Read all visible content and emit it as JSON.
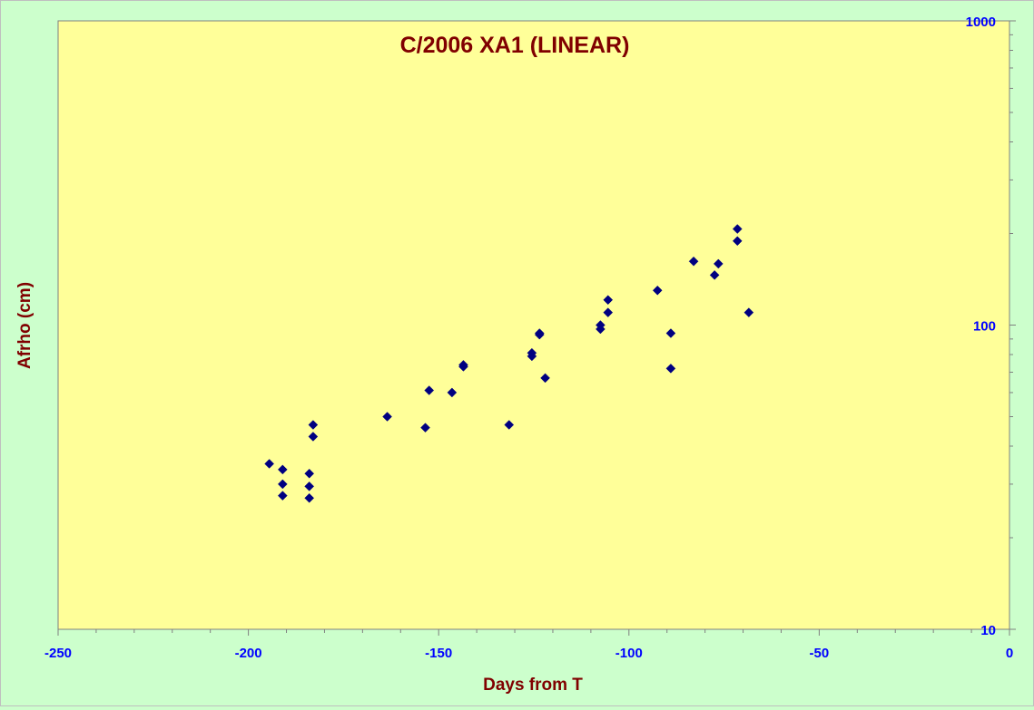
{
  "chart_data": {
    "type": "scatter",
    "title": "C/2006 XA1 (LINEAR)",
    "xlabel": "Days from T",
    "ylabel": "Afrho (cm)",
    "xlim": [
      -250,
      0
    ],
    "ylim": [
      10,
      1000
    ],
    "yscale": "log",
    "y_axis_side": "right",
    "x_ticks": [
      -250,
      -200,
      -150,
      -100,
      -50,
      0
    ],
    "y_ticks": [
      10,
      100,
      1000
    ],
    "grid": false,
    "legend": "none",
    "colors": {
      "plot_background": "#ffff99",
      "chart_background": "#ccffcc",
      "marker": "#000080",
      "title": "#800000",
      "tick_labels": "#0000ff"
    },
    "series": [
      {
        "points": [
          {
            "x": -194.5,
            "y": 35
          },
          {
            "x": -191.0,
            "y": 33.5
          },
          {
            "x": -191.0,
            "y": 30
          },
          {
            "x": -191.0,
            "y": 27.5
          },
          {
            "x": -184.0,
            "y": 32.5
          },
          {
            "x": -184.0,
            "y": 29.5
          },
          {
            "x": -184.0,
            "y": 27
          },
          {
            "x": -183.0,
            "y": 47
          },
          {
            "x": -183.0,
            "y": 43
          },
          {
            "x": -163.5,
            "y": 50
          },
          {
            "x": -153.5,
            "y": 46
          },
          {
            "x": -152.5,
            "y": 61
          },
          {
            "x": -146.5,
            "y": 60
          },
          {
            "x": -143.5,
            "y": 74
          },
          {
            "x": -143.5,
            "y": 73
          },
          {
            "x": -131.5,
            "y": 47
          },
          {
            "x": -125.5,
            "y": 81
          },
          {
            "x": -125.5,
            "y": 79
          },
          {
            "x": -123.5,
            "y": 94
          },
          {
            "x": -123.5,
            "y": 93
          },
          {
            "x": -122.0,
            "y": 67
          },
          {
            "x": -107.5,
            "y": 100
          },
          {
            "x": -107.5,
            "y": 97
          },
          {
            "x": -105.5,
            "y": 121
          },
          {
            "x": -105.5,
            "y": 110
          },
          {
            "x": -92.5,
            "y": 130
          },
          {
            "x": -89.0,
            "y": 94
          },
          {
            "x": -89.0,
            "y": 72
          },
          {
            "x": -83.0,
            "y": 162
          },
          {
            "x": -77.5,
            "y": 146
          },
          {
            "x": -76.5,
            "y": 159
          },
          {
            "x": -71.5,
            "y": 207
          },
          {
            "x": -71.5,
            "y": 189
          },
          {
            "x": -68.5,
            "y": 110
          }
        ]
      }
    ]
  }
}
